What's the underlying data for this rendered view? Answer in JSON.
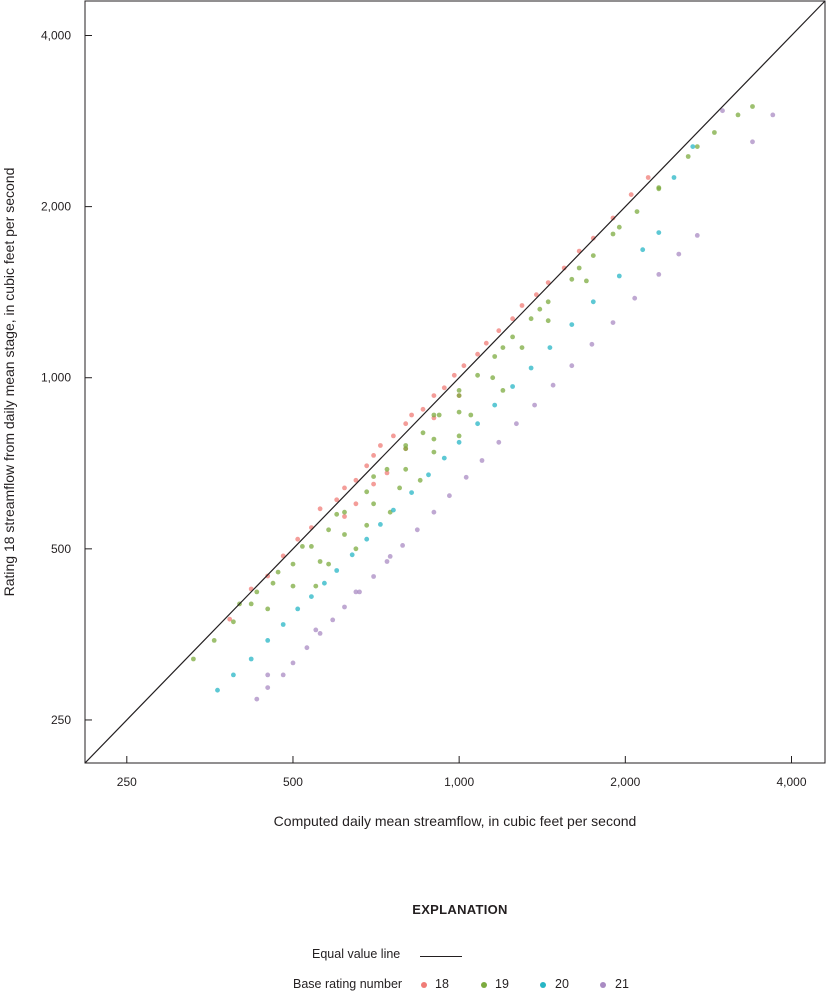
{
  "chart_data": {
    "type": "scatter",
    "xlabel": "Computed daily mean streamflow, in cubic feet per second",
    "ylabel": "Rating 18 streamflow from daily mean stage, in cubic feet per second",
    "x_scale": "log",
    "y_scale": "log",
    "xlim": [
      210,
      4600
    ],
    "ylim": [
      210,
      4600
    ],
    "x_ticks": [
      250,
      500,
      1000,
      2000,
      4000
    ],
    "y_ticks": [
      250,
      500,
      1000,
      2000,
      4000
    ],
    "x_tick_labels": [
      "250",
      "500",
      "1,000",
      "2,000",
      "4,000"
    ],
    "y_tick_labels": [
      "250",
      "500",
      "1,000",
      "2,000",
      "4,000"
    ],
    "grid": false,
    "equal_value_line": true,
    "series": [
      {
        "name": "18",
        "color": "#f07c77",
        "points": [
          [
            384,
            376
          ],
          [
            420,
            425
          ],
          [
            450,
            448
          ],
          [
            480,
            486
          ],
          [
            510,
            520
          ],
          [
            540,
            545
          ],
          [
            560,
            588
          ],
          [
            600,
            610
          ],
          [
            620,
            640
          ],
          [
            650,
            660
          ],
          [
            680,
            700
          ],
          [
            700,
            730
          ],
          [
            720,
            760
          ],
          [
            760,
            790
          ],
          [
            800,
            830
          ],
          [
            820,
            860
          ],
          [
            860,
            880
          ],
          [
            900,
            930
          ],
          [
            940,
            960
          ],
          [
            980,
            1010
          ],
          [
            1020,
            1050
          ],
          [
            1080,
            1100
          ],
          [
            1120,
            1150
          ],
          [
            1180,
            1210
          ],
          [
            1250,
            1270
          ],
          [
            1300,
            1340
          ],
          [
            1380,
            1400
          ],
          [
            1450,
            1470
          ],
          [
            1550,
            1560
          ],
          [
            1650,
            1670
          ],
          [
            1750,
            1760
          ],
          [
            1900,
            1910
          ],
          [
            2050,
            2100
          ],
          [
            2200,
            2250
          ],
          [
            700,
            650
          ],
          [
            740,
            680
          ],
          [
            800,
            750
          ],
          [
            650,
            600
          ],
          [
            620,
            570
          ],
          [
            900,
            850
          ],
          [
            1000,
            930
          ]
        ]
      },
      {
        "name": "19",
        "color": "#7cab3f",
        "points": [
          [
            330,
            320
          ],
          [
            360,
            345
          ],
          [
            390,
            372
          ],
          [
            420,
            400
          ],
          [
            460,
            435
          ],
          [
            500,
            470
          ],
          [
            540,
            505
          ],
          [
            580,
            540
          ],
          [
            620,
            580
          ],
          [
            680,
            630
          ],
          [
            740,
            690
          ],
          [
            800,
            750
          ],
          [
            860,
            800
          ],
          [
            920,
            860
          ],
          [
            1000,
            930
          ],
          [
            1080,
            1010
          ],
          [
            1160,
            1090
          ],
          [
            1250,
            1180
          ],
          [
            1350,
            1270
          ],
          [
            1450,
            1360
          ],
          [
            1600,
            1490
          ],
          [
            1750,
            1640
          ],
          [
            1900,
            1790
          ],
          [
            2100,
            1960
          ],
          [
            2300,
            2150
          ],
          [
            2600,
            2450
          ],
          [
            2900,
            2700
          ],
          [
            3200,
            2900
          ],
          [
            3400,
            3000
          ],
          [
            450,
            392
          ],
          [
            500,
            430
          ],
          [
            560,
            475
          ],
          [
            620,
            530
          ],
          [
            700,
            600
          ],
          [
            800,
            690
          ],
          [
            900,
            780
          ],
          [
            1000,
            870
          ],
          [
            1150,
            1000
          ],
          [
            1300,
            1130
          ],
          [
            1450,
            1260
          ],
          [
            1700,
            1480
          ],
          [
            400,
            400
          ],
          [
            430,
            420
          ],
          [
            470,
            455
          ],
          [
            520,
            505
          ],
          [
            600,
            575
          ],
          [
            700,
            670
          ],
          [
            800,
            760
          ],
          [
            900,
            860
          ],
          [
            1000,
            950
          ],
          [
            1200,
            1130
          ],
          [
            1400,
            1320
          ],
          [
            1650,
            1560
          ],
          [
            1950,
            1840
          ],
          [
            2300,
            2160
          ],
          [
            2700,
            2550
          ],
          [
            550,
            430
          ],
          [
            650,
            500
          ],
          [
            750,
            580
          ],
          [
            850,
            660
          ],
          [
            1000,
            790
          ],
          [
            1200,
            950
          ],
          [
            580,
            470
          ],
          [
            680,
            550
          ],
          [
            780,
            640
          ],
          [
            900,
            740
          ],
          [
            1050,
            860
          ]
        ]
      },
      {
        "name": "20",
        "color": "#27b5c5",
        "points": [
          [
            365,
            282
          ],
          [
            390,
            300
          ],
          [
            420,
            320
          ],
          [
            450,
            345
          ],
          [
            480,
            368
          ],
          [
            510,
            392
          ],
          [
            540,
            412
          ],
          [
            570,
            435
          ],
          [
            600,
            458
          ],
          [
            640,
            488
          ],
          [
            680,
            520
          ],
          [
            720,
            552
          ],
          [
            760,
            585
          ],
          [
            820,
            628
          ],
          [
            880,
            675
          ],
          [
            940,
            722
          ],
          [
            1000,
            770
          ],
          [
            1080,
            830
          ],
          [
            1160,
            895
          ],
          [
            1250,
            965
          ],
          [
            1350,
            1040
          ],
          [
            1460,
            1130
          ],
          [
            1600,
            1240
          ],
          [
            1750,
            1360
          ],
          [
            1950,
            1510
          ],
          [
            2150,
            1680
          ],
          [
            2300,
            1800
          ],
          [
            2450,
            2250
          ],
          [
            2650,
            2550
          ]
        ]
      },
      {
        "name": "21",
        "color": "#a98bc3",
        "points": [
          [
            430,
            272
          ],
          [
            450,
            285
          ],
          [
            480,
            300
          ],
          [
            500,
            315
          ],
          [
            530,
            335
          ],
          [
            560,
            355
          ],
          [
            590,
            375
          ],
          [
            620,
            395
          ],
          [
            660,
            420
          ],
          [
            700,
            447
          ],
          [
            740,
            475
          ],
          [
            790,
            507
          ],
          [
            840,
            540
          ],
          [
            900,
            580
          ],
          [
            960,
            620
          ],
          [
            1030,
            668
          ],
          [
            1100,
            715
          ],
          [
            1180,
            770
          ],
          [
            1270,
            830
          ],
          [
            1370,
            895
          ],
          [
            1480,
            970
          ],
          [
            1600,
            1050
          ],
          [
            1740,
            1145
          ],
          [
            1900,
            1250
          ],
          [
            2080,
            1380
          ],
          [
            2300,
            1520
          ],
          [
            2500,
            1650
          ],
          [
            2700,
            1780
          ],
          [
            3000,
            2950
          ],
          [
            3400,
            2600
          ],
          [
            3700,
            2900
          ],
          [
            450,
            300
          ],
          [
            550,
            360
          ],
          [
            650,
            420
          ],
          [
            750,
            485
          ]
        ]
      }
    ]
  },
  "legend": {
    "title": "EXPLANATION",
    "equal_value_label": "Equal value line",
    "base_rating_label": "Base rating number",
    "items": [
      {
        "label": "18",
        "color": "#f07c77"
      },
      {
        "label": "19",
        "color": "#7cab3f"
      },
      {
        "label": "20",
        "color": "#27b5c5"
      },
      {
        "label": "21",
        "color": "#a98bc3"
      }
    ]
  }
}
